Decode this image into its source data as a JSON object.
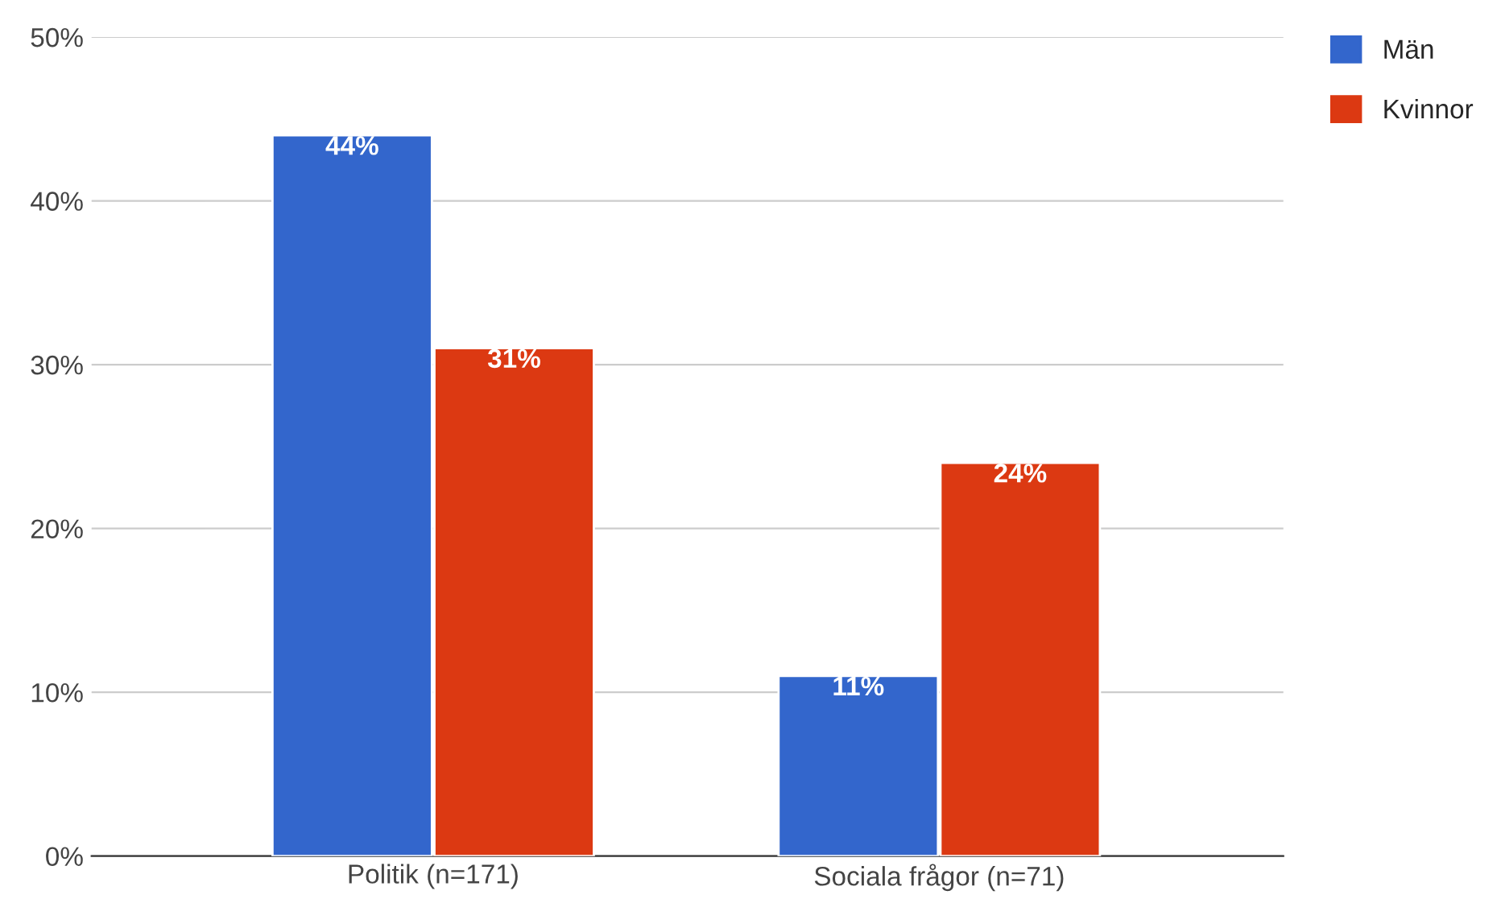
{
  "chart_data": {
    "type": "bar",
    "categories": [
      "Politik (n=171)",
      "Sociala frågor (n=71)"
    ],
    "series": [
      {
        "name": "Män",
        "color": "#3366cc",
        "values": [
          44,
          11
        ],
        "value_labels": [
          "44%",
          "11%"
        ]
      },
      {
        "name": "Kvinnor",
        "color": "#dc3912",
        "values": [
          31,
          24
        ],
        "value_labels": [
          "31%",
          "24%"
        ]
      }
    ],
    "ylim": [
      0,
      50
    ],
    "yticks": [
      {
        "value": 0,
        "label": "0%"
      },
      {
        "value": 10,
        "label": "10%"
      },
      {
        "value": 20,
        "label": "20%"
      },
      {
        "value": 30,
        "label": "30%"
      },
      {
        "value": 40,
        "label": "40%"
      },
      {
        "value": 50,
        "label": "50%"
      }
    ],
    "grid": "y",
    "legend": "top right"
  }
}
